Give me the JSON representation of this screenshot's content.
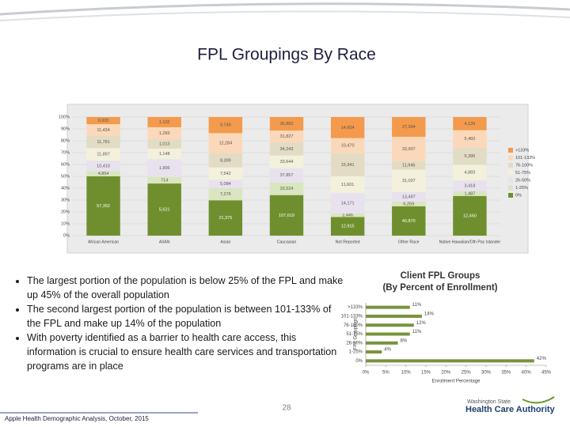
{
  "slide": {
    "title": "FPL Groupings By Race",
    "bullets": [
      "The largest portion of the population is below 25% of the FPL and make up 45% of the overall population",
      "The second largest portion of the population is between 101-133% of the FPL and make up 14% of the population",
      "With poverty identified as a barrier to health care access, this information is crucial to ensure health care services and transportation programs are in place"
    ],
    "page_number": "28",
    "footer": "Apple Health Demographic Analysis, October, 2015",
    "logo": {
      "line1": "Washington State",
      "line2": "Health Care Authority"
    }
  },
  "chart_data": [
    {
      "type": "stacked100",
      "categories": [
        "African American",
        "AI/AN",
        "Asian",
        "Caucasian",
        "Not Reported",
        "Other Race",
        "Native Hawaiian/Oth Pac Islander"
      ],
      "ylim": [
        0,
        100
      ],
      "yticks": [
        {
          "value": 0,
          "label": "0%"
        },
        {
          "value": 10,
          "label": "10%"
        },
        {
          "value": 20,
          "label": "20%"
        },
        {
          "value": 30,
          "label": "30%"
        },
        {
          "value": 40,
          "label": "40%"
        },
        {
          "value": 50,
          "label": "50%"
        },
        {
          "value": 60,
          "label": "60%"
        },
        {
          "value": 70,
          "label": "70%"
        },
        {
          "value": 80,
          "label": "80%"
        },
        {
          "value": 90,
          "label": "90%"
        },
        {
          "value": 100,
          "label": "100%"
        }
      ],
      "legend": "right",
      "series": [
        {
          "name": "0%",
          "color": "#6f8f2f",
          "values": [
            57352,
            5621,
            21375,
            107619,
            12915,
            40870,
            12460
          ],
          "value_labels": [
            "57,352",
            "5,621",
            "21,375",
            "107,619",
            "12,915",
            "40,870",
            "12,460"
          ]
        },
        {
          "name": "1-25%",
          "color": "#d9e6bf",
          "values": [
            4854,
            714,
            7276,
            33524,
            2446,
            6259,
            1487
          ],
          "value_labels": [
            "4,854",
            "714",
            "7,276",
            "33,524",
            "2,446",
            "6,259",
            "1,487"
          ]
        },
        {
          "name": "26-50%",
          "color": "#e8e2ee",
          "values": [
            10410,
            1906,
            5084,
            37857,
            14171,
            13497,
            3418
          ],
          "value_labels": [
            "10,410",
            "1,906",
            "5,084",
            "37,857",
            "14,171",
            "13,497",
            "3,418"
          ]
        },
        {
          "name": "51-75%",
          "color": "#f3f1dc",
          "values": [
            11897,
            1148,
            7542,
            33644,
            11601,
            31037,
            4883
          ],
          "value_labels": [
            "11,897",
            "1,148",
            "7,542",
            "33,644",
            "11,601",
            "31,037",
            "4,883"
          ]
        },
        {
          "name": "76-100%",
          "color": "#e2dcc4",
          "values": [
            11781,
            1013,
            8399,
            34243,
            15941,
            11946,
            5396
          ],
          "value_labels": [
            "11,781",
            "1,013",
            "8,399",
            "34,243",
            "15,941",
            "11,946",
            "5,396"
          ]
        },
        {
          "name": "101-133%",
          "color": "#fbd8b9",
          "values": [
            11434,
            1283,
            12284,
            31827,
            10470,
            33907,
            5460
          ],
          "value_labels": [
            "11,434",
            "1,283",
            "12,284",
            "31,827",
            "10,470",
            "33,907",
            "5,460"
          ]
        },
        {
          "name": ">133%",
          "color": "#f39a4c",
          "values": [
            6920,
            1102,
            9749,
            35892,
            14604,
            27394,
            4139
          ],
          "value_labels": [
            "6,920",
            "1,102",
            "9,749",
            "35,892",
            "14,604",
            "27,394",
            "4,139"
          ]
        }
      ]
    },
    {
      "type": "hbar",
      "title": "Client FPL Groups",
      "subtitle": "(By Percent of Enrollment)",
      "x_label": "Enrollment Percentage",
      "y_label": "FPL Groupings",
      "categories": [
        ">133%",
        "101-133%",
        "76-100%",
        "51-75%",
        "26-50%",
        "1-25%",
        "0%"
      ],
      "values": [
        11,
        14,
        12,
        11,
        8,
        4,
        42
      ],
      "value_labels": [
        "11%",
        "14%",
        "12%",
        "11%",
        "8%",
        "4%",
        "42%"
      ],
      "color": "#77933c",
      "xlim": [
        0,
        45
      ],
      "xticks": [
        {
          "value": 0,
          "label": "0%"
        },
        {
          "value": 5,
          "label": "5%"
        },
        {
          "value": 10,
          "label": "10%"
        },
        {
          "value": 15,
          "label": "15%"
        },
        {
          "value": 20,
          "label": "20%"
        },
        {
          "value": 25,
          "label": "25%"
        },
        {
          "value": 30,
          "label": "30%"
        },
        {
          "value": 35,
          "label": "35%"
        },
        {
          "value": 40,
          "label": "40%"
        },
        {
          "value": 45,
          "label": "45%"
        }
      ]
    }
  ]
}
